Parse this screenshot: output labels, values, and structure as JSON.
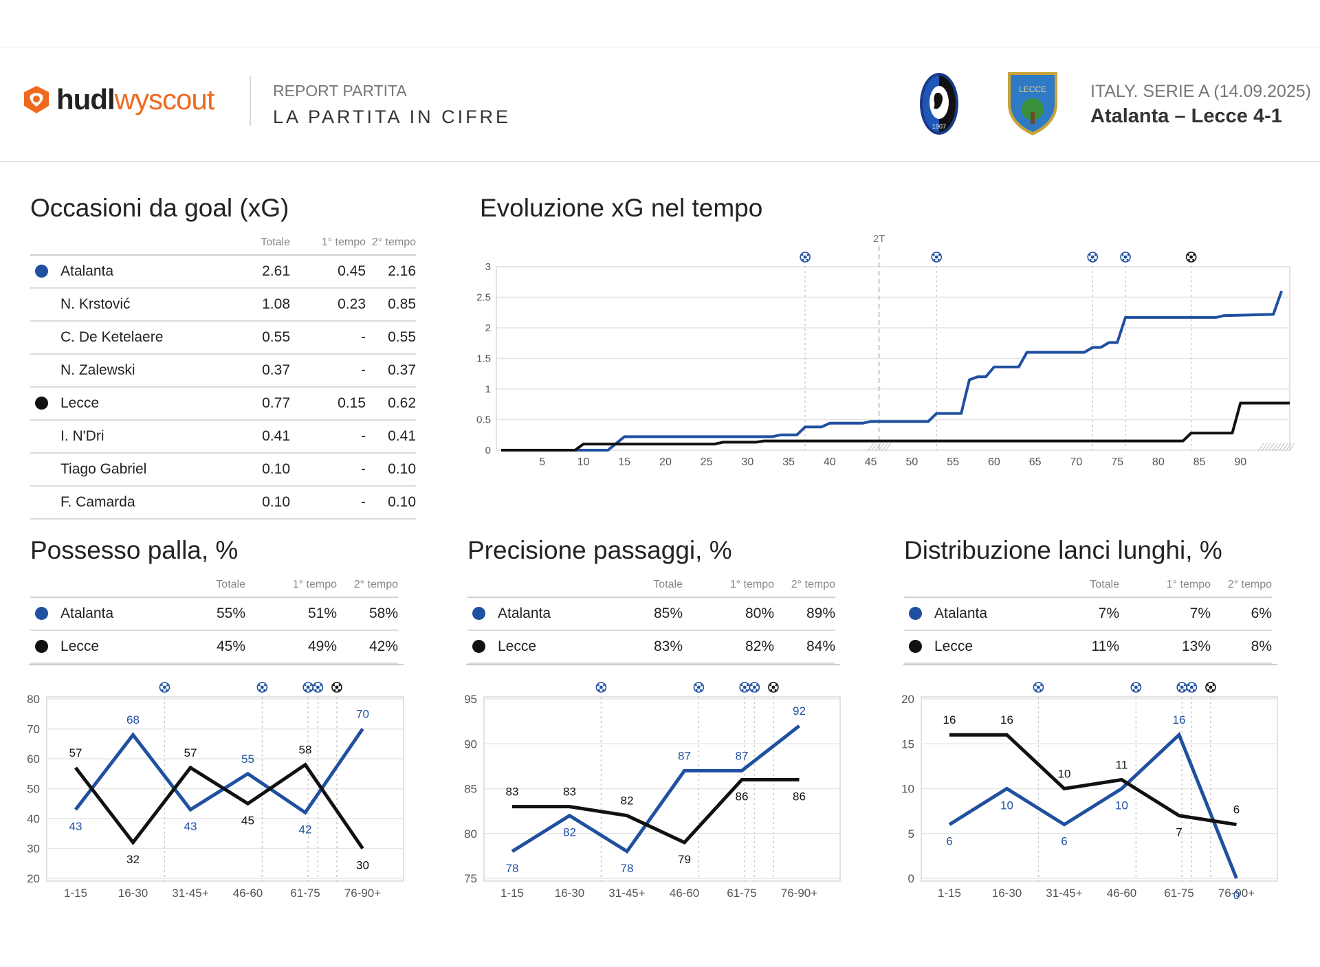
{
  "header": {
    "brand_part1": "hudl",
    "brand_part2": "wyscout",
    "report_kicker": "REPORT PARTITA",
    "report_title": "LA PARTITA IN CIFRE",
    "competition": "ITALY. SERIE A (14.09.2025)",
    "match": "Atalanta – Lecce 4-1",
    "home_crest": "atalanta-crest-icon",
    "away_crest": "lecce-crest-icon"
  },
  "colors": {
    "atalanta": "#2050a0",
    "lecce": "#111111",
    "brand_orange": "#ee6a1f"
  },
  "xg_table": {
    "title": "Occasioni da goal (xG)",
    "columns": [
      "Totale",
      "1° tempo",
      "2° tempo"
    ],
    "rows": [
      {
        "name": "Atalanta",
        "team": "atalanta",
        "total": "2.61",
        "h1": "0.45",
        "h2": "2.16"
      },
      {
        "name": "N. Krstović",
        "team": "",
        "total": "1.08",
        "h1": "0.23",
        "h2": "0.85"
      },
      {
        "name": "C. De Ketelaere",
        "team": "",
        "total": "0.55",
        "h1": "-",
        "h2": "0.55"
      },
      {
        "name": "N. Zalewski",
        "team": "",
        "total": "0.37",
        "h1": "-",
        "h2": "0.37"
      },
      {
        "name": "Lecce",
        "team": "lecce",
        "total": "0.77",
        "h1": "0.15",
        "h2": "0.62"
      },
      {
        "name": "I. N'Dri",
        "team": "",
        "total": "0.41",
        "h1": "-",
        "h2": "0.41"
      },
      {
        "name": "Tiago Gabriel",
        "team": "",
        "total": "0.10",
        "h1": "-",
        "h2": "0.10"
      },
      {
        "name": "F. Camarda",
        "team": "",
        "total": "0.10",
        "h1": "-",
        "h2": "0.10"
      }
    ]
  },
  "possession": {
    "title": "Possesso palla, %",
    "columns": [
      "Totale",
      "1° tempo",
      "2° tempo"
    ],
    "rows": [
      {
        "name": "Atalanta",
        "team": "atalanta",
        "total": "55%",
        "h1": "51%",
        "h2": "58%"
      },
      {
        "name": "Lecce",
        "team": "lecce",
        "total": "45%",
        "h1": "49%",
        "h2": "42%"
      }
    ]
  },
  "passing": {
    "title": "Precisione passaggi, %",
    "columns": [
      "Totale",
      "1° tempo",
      "2° tempo"
    ],
    "rows": [
      {
        "name": "Atalanta",
        "team": "atalanta",
        "total": "85%",
        "h1": "80%",
        "h2": "89%"
      },
      {
        "name": "Lecce",
        "team": "lecce",
        "total": "83%",
        "h1": "82%",
        "h2": "84%"
      }
    ]
  },
  "longballs": {
    "title": "Distribuzione lanci lunghi, %",
    "columns": [
      "Totale",
      "1° tempo",
      "2° tempo"
    ],
    "rows": [
      {
        "name": "Atalanta",
        "team": "atalanta",
        "total": "7%",
        "h1": "7%",
        "h2": "6%"
      },
      {
        "name": "Lecce",
        "team": "lecce",
        "total": "11%",
        "h1": "13%",
        "h2": "8%"
      }
    ]
  },
  "xg_evolution_title": "Evoluzione xG nel tempo",
  "chart_data": [
    {
      "id": "xg_evolution",
      "type": "line",
      "title": "Evoluzione xG nel tempo",
      "x_ticks": [
        5,
        10,
        15,
        20,
        25,
        30,
        35,
        40,
        45,
        50,
        55,
        60,
        65,
        70,
        75,
        80,
        85,
        90
      ],
      "y_ticks": [
        "0",
        "0.5",
        "1",
        "1.5",
        "2",
        "2.5",
        "3"
      ],
      "ylim": [
        0,
        3
      ],
      "xlim": [
        0,
        96
      ],
      "half_time_label": "2T",
      "half_time_minute": 46,
      "goal_markers": [
        {
          "minute": 37,
          "team": "atalanta"
        },
        {
          "minute": 53,
          "team": "atalanta"
        },
        {
          "minute": 72,
          "team": "atalanta"
        },
        {
          "minute": 76,
          "team": "atalanta"
        },
        {
          "minute": 84,
          "team": "lecce"
        }
      ],
      "series": [
        {
          "name": "Atalanta",
          "team": "atalanta",
          "points": [
            [
              0,
              0
            ],
            [
              13,
              0
            ],
            [
              15,
              0.22
            ],
            [
              33,
              0.22
            ],
            [
              34,
              0.25
            ],
            [
              36,
              0.25
            ],
            [
              37,
              0.38
            ],
            [
              39,
              0.38
            ],
            [
              40,
              0.44
            ],
            [
              44,
              0.44
            ],
            [
              45,
              0.47
            ],
            [
              52,
              0.47
            ],
            [
              53,
              0.6
            ],
            [
              56,
              0.6
            ],
            [
              57,
              1.15
            ],
            [
              58,
              1.2
            ],
            [
              59,
              1.2
            ],
            [
              60,
              1.36
            ],
            [
              63,
              1.36
            ],
            [
              64,
              1.6
            ],
            [
              71,
              1.6
            ],
            [
              72,
              1.68
            ],
            [
              73,
              1.68
            ],
            [
              74,
              1.76
            ],
            [
              75,
              1.76
            ],
            [
              76,
              2.17
            ],
            [
              87,
              2.17
            ],
            [
              88,
              2.2
            ],
            [
              94,
              2.22
            ],
            [
              95,
              2.6
            ]
          ]
        },
        {
          "name": "Lecce",
          "team": "lecce",
          "points": [
            [
              0,
              0
            ],
            [
              9,
              0
            ],
            [
              10,
              0.1
            ],
            [
              26,
              0.1
            ],
            [
              27,
              0.13
            ],
            [
              31,
              0.13
            ],
            [
              32,
              0.15
            ],
            [
              83,
              0.15
            ],
            [
              84,
              0.28
            ],
            [
              89,
              0.28
            ],
            [
              90,
              0.77
            ],
            [
              96,
              0.77
            ]
          ]
        }
      ]
    },
    {
      "id": "possession_periods",
      "type": "line",
      "categories": [
        "1-15",
        "16-30",
        "31-45+",
        "46-60",
        "61-75",
        "76-90+"
      ],
      "y_ticks": [
        "20",
        "30",
        "40",
        "50",
        "60",
        "70",
        "80"
      ],
      "ylim": [
        20,
        80
      ],
      "goal_markers": [
        {
          "pos": 1.55,
          "team": "atalanta"
        },
        {
          "pos": 3.25,
          "team": "atalanta"
        },
        {
          "pos": 4.05,
          "team": "atalanta"
        },
        {
          "pos": 4.22,
          "team": "atalanta"
        },
        {
          "pos": 4.55,
          "team": "lecce"
        }
      ],
      "series": [
        {
          "name": "Atalanta",
          "team": "atalanta",
          "values": [
            43,
            68,
            43,
            55,
            42,
            70
          ]
        },
        {
          "name": "Lecce",
          "team": "lecce",
          "values": [
            57,
            32,
            57,
            45,
            58,
            30
          ]
        }
      ]
    },
    {
      "id": "passing_periods",
      "type": "line",
      "categories": [
        "1-15",
        "16-30",
        "31-45+",
        "46-60",
        "61-75",
        "76-90+"
      ],
      "y_ticks": [
        "75",
        "80",
        "85",
        "90",
        "95"
      ],
      "ylim": [
        75,
        95
      ],
      "goal_markers": [
        {
          "pos": 1.55,
          "team": "atalanta"
        },
        {
          "pos": 3.25,
          "team": "atalanta"
        },
        {
          "pos": 4.05,
          "team": "atalanta"
        },
        {
          "pos": 4.22,
          "team": "atalanta"
        },
        {
          "pos": 4.55,
          "team": "lecce"
        }
      ],
      "series": [
        {
          "name": "Atalanta",
          "team": "atalanta",
          "values": [
            78,
            82,
            78,
            87,
            87,
            92
          ]
        },
        {
          "name": "Lecce",
          "team": "lecce",
          "values": [
            83,
            83,
            82,
            79,
            86,
            86
          ]
        }
      ]
    },
    {
      "id": "longballs_periods",
      "type": "line",
      "categories": [
        "1-15",
        "16-30",
        "31-45+",
        "46-60",
        "61-75",
        "76-90+"
      ],
      "y_ticks": [
        "0",
        "5",
        "10",
        "15",
        "20"
      ],
      "ylim": [
        0,
        20
      ],
      "goal_markers": [
        {
          "pos": 1.55,
          "team": "atalanta"
        },
        {
          "pos": 3.25,
          "team": "atalanta"
        },
        {
          "pos": 4.05,
          "team": "atalanta"
        },
        {
          "pos": 4.22,
          "team": "atalanta"
        },
        {
          "pos": 4.55,
          "team": "lecce"
        }
      ],
      "series": [
        {
          "name": "Atalanta",
          "team": "atalanta",
          "values": [
            6,
            10,
            6,
            10,
            16,
            0
          ]
        },
        {
          "name": "Lecce",
          "team": "lecce",
          "values": [
            16,
            16,
            10,
            11,
            7,
            6
          ]
        }
      ]
    }
  ]
}
